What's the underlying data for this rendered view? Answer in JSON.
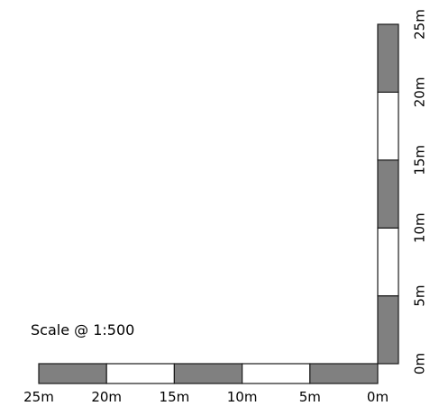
{
  "scale_caption": "Scale @ 1:500",
  "horizontal_bar": {
    "labels": [
      "25m",
      "20m",
      "15m",
      "10m",
      "5m",
      "0m"
    ],
    "segments": [
      "filled",
      "empty",
      "filled",
      "empty",
      "filled"
    ]
  },
  "vertical_bar": {
    "labels": [
      "0m",
      "5m",
      "10m",
      "15m",
      "20m",
      "25m"
    ],
    "segments": [
      "filled",
      "empty",
      "filled",
      "empty",
      "filled"
    ]
  },
  "colors": {
    "filled": "#808080",
    "empty": "#ffffff",
    "stroke": "#1a1a1a"
  }
}
